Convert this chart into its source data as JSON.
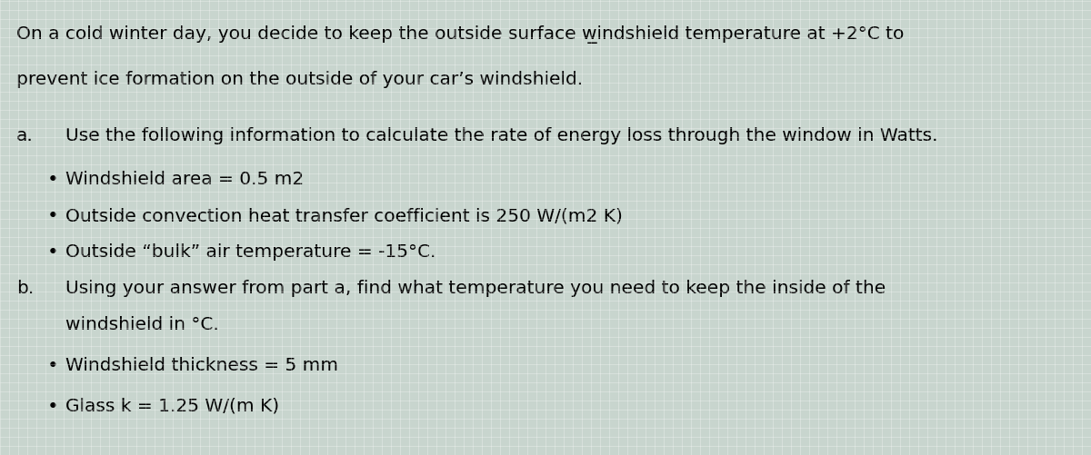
{
  "background_color": "#c8d8d0",
  "text_color": "#000000",
  "figsize": [
    12.0,
    5.02
  ],
  "dpi": 100,
  "intro_line1": "On a cold winter day, you decide to keep the outside surface w̲indshield temperature at +2°C to",
  "intro_line2": "prevent ice formation on the outside of your car’s windshield.",
  "part_a_label": "a.",
  "part_a_text": "Use the following information to calculate the rate of energy loss through the window in Watts.",
  "bullet_a1": "Windshield area = 0.5 m2",
  "bullet_a2": "Outside convection heat transfer coefficient is 250 W/(m2 K)",
  "bullet_a3": "Outside “bulk” air temperature = -15°C.",
  "part_b_label": "b.",
  "part_b_text": "Using your answer from part a, find what temperature you need to keep the inside of the",
  "part_b_text2": "windshield in °C.",
  "bullet_b1": "Windshield thickness = 5 mm",
  "bullet_b2": "Glass k = 1.25 W/(m K)",
  "font_size": 14.5,
  "font_family": "DejaVu Sans"
}
